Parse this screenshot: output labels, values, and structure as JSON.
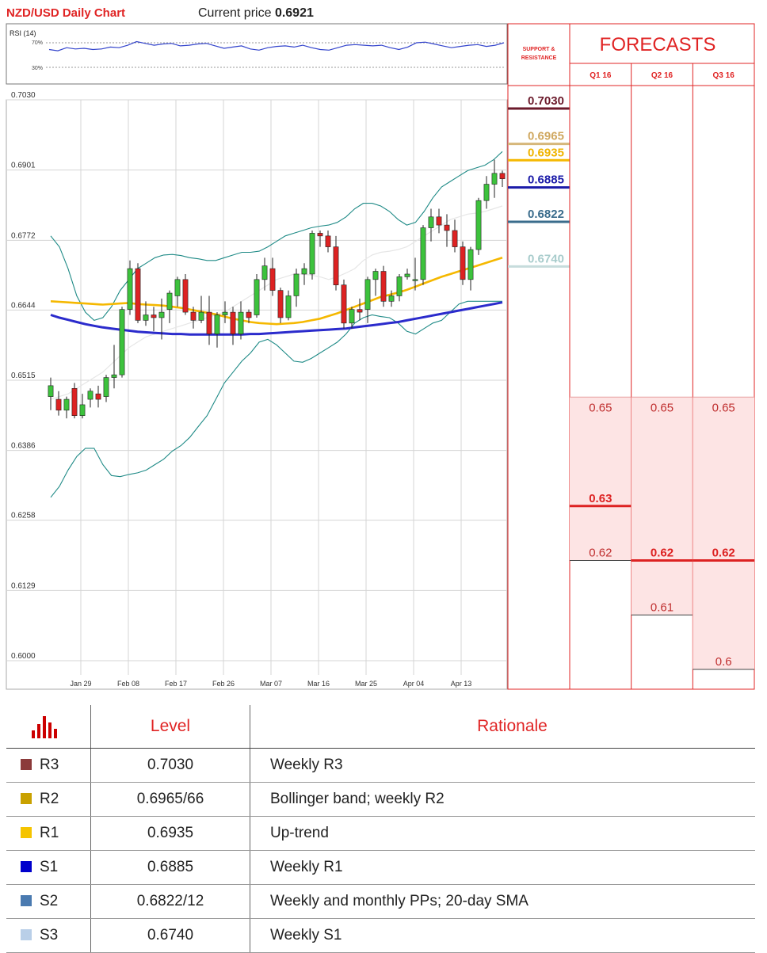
{
  "header": {
    "title": "NZD/USD Daily Chart",
    "price_label": "Current price",
    "price_value": "0.6921"
  },
  "rsi": {
    "label": "RSI (14)",
    "upper": "70%",
    "lower": "30%",
    "values": [
      59,
      57,
      62,
      60,
      61,
      59,
      60,
      63,
      62,
      66,
      72,
      69,
      66,
      68,
      69,
      65,
      66,
      68,
      69,
      65,
      61,
      63,
      65,
      60,
      58,
      62,
      64,
      65,
      63,
      66,
      62,
      59,
      58,
      62,
      66,
      67,
      66,
      65,
      66,
      62,
      59,
      63,
      70,
      71,
      68,
      65,
      62,
      64,
      66,
      67,
      64,
      66,
      70
    ]
  },
  "colors": {
    "bull": "#3cc23c",
    "bear": "#dd2222",
    "sma50": "#f5b800",
    "sma100": "#2b2bcc",
    "bollinger": "#1e8a86",
    "sma20": "#e6e6e6",
    "forecast_fill": "#fde4e4",
    "accent_red": "#e02424"
  },
  "chart_data": {
    "type": "candlestick",
    "title": "NZD/USD Daily Chart",
    "y_ticks": [
      "0.7030",
      "0.6901",
      "0.6772",
      "0.6644",
      "0.6515",
      "0.6386",
      "0.6258",
      "0.6129",
      "0.6000"
    ],
    "ylim": [
      0.6,
      0.703
    ],
    "x_ticks": [
      {
        "label": "Jan 29",
        "index": 2
      },
      {
        "label": "Feb 08",
        "index": 8
      },
      {
        "label": "Feb 17",
        "index": 14
      },
      {
        "label": "Feb 26",
        "index": 20
      },
      {
        "label": "Mar 07",
        "index": 26
      },
      {
        "label": "Mar 16",
        "index": 32
      },
      {
        "label": "Mar 25",
        "index": 38
      },
      {
        "label": "Apr 04",
        "index": 44
      },
      {
        "label": "Apr 13",
        "index": 50
      }
    ],
    "candles": [
      [
        0.6485,
        0.652,
        0.646,
        0.6505
      ],
      [
        0.648,
        0.6495,
        0.645,
        0.646
      ],
      [
        0.646,
        0.6485,
        0.6445,
        0.648
      ],
      [
        0.65,
        0.651,
        0.6445,
        0.645
      ],
      [
        0.645,
        0.649,
        0.6445,
        0.647
      ],
      [
        0.648,
        0.65,
        0.6465,
        0.6495
      ],
      [
        0.649,
        0.6505,
        0.6465,
        0.648
      ],
      [
        0.6485,
        0.6525,
        0.6475,
        0.652
      ],
      [
        0.652,
        0.658,
        0.65,
        0.6525
      ],
      [
        0.6525,
        0.665,
        0.652,
        0.6645
      ],
      [
        0.6645,
        0.6735,
        0.6635,
        0.672
      ],
      [
        0.672,
        0.673,
        0.662,
        0.6625
      ],
      [
        0.6625,
        0.666,
        0.6615,
        0.6635
      ],
      [
        0.6635,
        0.665,
        0.6605,
        0.663
      ],
      [
        0.663,
        0.6665,
        0.659,
        0.664
      ],
      [
        0.6645,
        0.668,
        0.662,
        0.6675
      ],
      [
        0.667,
        0.6705,
        0.665,
        0.67
      ],
      [
        0.67,
        0.671,
        0.6635,
        0.664
      ],
      [
        0.664,
        0.665,
        0.661,
        0.6625
      ],
      [
        0.6625,
        0.667,
        0.662,
        0.664
      ],
      [
        0.664,
        0.667,
        0.658,
        0.66
      ],
      [
        0.66,
        0.664,
        0.6575,
        0.6635
      ],
      [
        0.6635,
        0.666,
        0.662,
        0.664
      ],
      [
        0.664,
        0.665,
        0.658,
        0.66
      ],
      [
        0.66,
        0.666,
        0.659,
        0.664
      ],
      [
        0.664,
        0.6645,
        0.662,
        0.663
      ],
      [
        0.6635,
        0.671,
        0.663,
        0.67
      ],
      [
        0.67,
        0.674,
        0.668,
        0.6725
      ],
      [
        0.672,
        0.674,
        0.667,
        0.668
      ],
      [
        0.668,
        0.6685,
        0.662,
        0.663
      ],
      [
        0.663,
        0.668,
        0.6625,
        0.667
      ],
      [
        0.667,
        0.672,
        0.665,
        0.671
      ],
      [
        0.671,
        0.673,
        0.669,
        0.672
      ],
      [
        0.671,
        0.679,
        0.67,
        0.6785
      ],
      [
        0.6785,
        0.679,
        0.676,
        0.678
      ],
      [
        0.678,
        0.679,
        0.675,
        0.676
      ],
      [
        0.676,
        0.678,
        0.668,
        0.669
      ],
      [
        0.669,
        0.67,
        0.661,
        0.662
      ],
      [
        0.662,
        0.665,
        0.661,
        0.6645
      ],
      [
        0.6645,
        0.6665,
        0.6625,
        0.664
      ],
      [
        0.6645,
        0.6705,
        0.662,
        0.67
      ],
      [
        0.67,
        0.672,
        0.667,
        0.6715
      ],
      [
        0.6715,
        0.6725,
        0.665,
        0.666
      ],
      [
        0.666,
        0.668,
        0.665,
        0.667
      ],
      [
        0.667,
        0.671,
        0.666,
        0.6705
      ],
      [
        0.6705,
        0.672,
        0.67,
        0.671
      ],
      [
        0.67,
        0.674,
        0.668,
        0.67
      ],
      [
        0.67,
        0.68,
        0.669,
        0.6795
      ],
      [
        0.6795,
        0.683,
        0.677,
        0.6815
      ],
      [
        0.6815,
        0.683,
        0.6785,
        0.68
      ],
      [
        0.68,
        0.682,
        0.676,
        0.679
      ],
      [
        0.679,
        0.681,
        0.675,
        0.676
      ],
      [
        0.676,
        0.677,
        0.669,
        0.67
      ],
      [
        0.67,
        0.676,
        0.668,
        0.6755
      ],
      [
        0.6755,
        0.685,
        0.6745,
        0.6845
      ],
      [
        0.6845,
        0.689,
        0.683,
        0.6875
      ],
      [
        0.6875,
        0.692,
        0.685,
        0.6895
      ],
      [
        0.6895,
        0.69,
        0.687,
        0.6885
      ]
    ],
    "sma50": [
      0.666,
      0.6659,
      0.6658,
      0.6657,
      0.6656,
      0.6655,
      0.6654,
      0.6655,
      0.6656,
      0.6657,
      0.6655,
      0.6654,
      0.6653,
      0.6652,
      0.665,
      0.6648,
      0.6645,
      0.6642,
      0.6639,
      0.6636,
      0.6632,
      0.6628,
      0.6625,
      0.6622,
      0.662,
      0.6619,
      0.6618,
      0.6619,
      0.662,
      0.6622,
      0.6625,
      0.6628,
      0.6633,
      0.6638,
      0.6644,
      0.665,
      0.6656,
      0.6662,
      0.6668,
      0.6672,
      0.6676,
      0.6681,
      0.6687,
      0.6693,
      0.6699,
      0.6705,
      0.671,
      0.6715,
      0.672,
      0.6725,
      0.673,
      0.6735,
      0.674
    ],
    "sma100": [
      0.6635,
      0.663,
      0.6626,
      0.6622,
      0.6618,
      0.6615,
      0.6612,
      0.661,
      0.6608,
      0.6606,
      0.6604,
      0.6603,
      0.6602,
      0.6601,
      0.66,
      0.66,
      0.6599,
      0.6599,
      0.6599,
      0.6599,
      0.6599,
      0.6599,
      0.6599,
      0.66,
      0.66,
      0.6601,
      0.6602,
      0.6603,
      0.6604,
      0.6605,
      0.6606,
      0.6607,
      0.6608,
      0.6609,
      0.661,
      0.6612,
      0.6614,
      0.6616,
      0.6618,
      0.662,
      0.6622,
      0.6625,
      0.6628,
      0.6631,
      0.6634,
      0.6637,
      0.664,
      0.6643,
      0.6646,
      0.6649,
      0.6652,
      0.6655,
      0.6658
    ],
    "bb_upper": [
      0.678,
      0.676,
      0.672,
      0.667,
      0.664,
      0.6625,
      0.663,
      0.665,
      0.668,
      0.67,
      0.672,
      0.673,
      0.674,
      0.6745,
      0.6746,
      0.6744,
      0.674,
      0.6738,
      0.6735,
      0.6735,
      0.674,
      0.6745,
      0.675,
      0.675,
      0.6752,
      0.676,
      0.677,
      0.678,
      0.6785,
      0.679,
      0.6795,
      0.6798,
      0.68,
      0.6805,
      0.6815,
      0.683,
      0.684,
      0.684,
      0.6835,
      0.6825,
      0.681,
      0.68,
      0.6805,
      0.6825,
      0.685,
      0.687,
      0.688,
      0.689,
      0.69,
      0.6905,
      0.691,
      0.692,
      0.6935
    ],
    "bb_lower": [
      0.63,
      0.632,
      0.635,
      0.6375,
      0.639,
      0.639,
      0.636,
      0.634,
      0.6338,
      0.6342,
      0.6345,
      0.635,
      0.636,
      0.637,
      0.6385,
      0.6395,
      0.641,
      0.643,
      0.645,
      0.648,
      0.651,
      0.653,
      0.655,
      0.6565,
      0.6585,
      0.659,
      0.658,
      0.6565,
      0.655,
      0.6548,
      0.6555,
      0.6565,
      0.6575,
      0.6585,
      0.66,
      0.662,
      0.663,
      0.6635,
      0.6632,
      0.663,
      0.662,
      0.6605,
      0.66,
      0.661,
      0.662,
      0.6625,
      0.664,
      0.6655,
      0.666,
      0.666,
      0.666,
      0.666,
      0.666
    ],
    "sma20": [
      0.648,
      0.6485,
      0.649,
      0.65,
      0.651,
      0.652,
      0.653,
      0.6545,
      0.656,
      0.6575,
      0.6585,
      0.6595,
      0.66,
      0.6605,
      0.661,
      0.6615,
      0.662,
      0.6625,
      0.663,
      0.6635,
      0.664,
      0.665,
      0.666,
      0.667,
      0.668,
      0.669,
      0.67,
      0.6705,
      0.671,
      0.671,
      0.6708,
      0.6705,
      0.67,
      0.6705,
      0.6712,
      0.672,
      0.6735,
      0.6745,
      0.675,
      0.6752,
      0.6755,
      0.676,
      0.677,
      0.678,
      0.679,
      0.68,
      0.681,
      0.6815,
      0.682,
      0.6822,
      0.6825,
      0.683,
      0.6835
    ]
  },
  "support_resistance": {
    "header": "SUPPORT & RESISTANCE",
    "levels": [
      {
        "label": "0.7030",
        "value": 0.703,
        "color": "#6b1a2b",
        "text_color": "#6b1a2b"
      },
      {
        "label": "0.6965",
        "value": 0.6965,
        "color": "#d6b77a",
        "text_color": "#d0a860"
      },
      {
        "label": "0.6935",
        "value": 0.6935,
        "color": "#f5b800",
        "text_color": "#f0b400"
      },
      {
        "label": "0.6885",
        "value": 0.6885,
        "color": "#1a1aa8",
        "text_color": "#1a1aa8"
      },
      {
        "label": "0.6822",
        "value": 0.6822,
        "color": "#3a6c8c",
        "text_color": "#3a6c8c"
      },
      {
        "label": "0.6740",
        "value": 0.674,
        "color": "#c6dcdc",
        "text_color": "#a8cccc"
      }
    ]
  },
  "forecasts": {
    "title": "FORECASTS",
    "columns": [
      {
        "label": "Q1 16",
        "top": 0.65,
        "top_label": "0.65",
        "bottom": 0.62,
        "bottom_label": "0.62",
        "mean": 0.63,
        "mean_label": "0.63"
      },
      {
        "label": "Q2 16",
        "top": 0.65,
        "top_label": "0.65",
        "bottom": 0.61,
        "bottom_label": "0.61",
        "mean": 0.62,
        "mean_label": "0.62"
      },
      {
        "label": "Q3 16",
        "top": 0.65,
        "top_label": "0.65",
        "bottom": 0.6,
        "bottom_label": "0.6",
        "mean": 0.62,
        "mean_label": "0.62"
      }
    ]
  },
  "levels_table": {
    "headers": {
      "level": "Level",
      "rationale": "Rationale"
    },
    "rows": [
      {
        "name": "R3",
        "value": "0.7030",
        "rationale": "Weekly R3",
        "color": "#8b3a3a"
      },
      {
        "name": "R2",
        "value": "0.6965/66",
        "rationale": "Bollinger band; weekly R2",
        "color": "#c9a100"
      },
      {
        "name": "R1",
        "value": "0.6935",
        "rationale": "Up-trend",
        "color": "#f5c400"
      },
      {
        "name": "S1",
        "value": "0.6885",
        "rationale": "Weekly R1",
        "color": "#0000cc"
      },
      {
        "name": "S2",
        "value": "0.6822/12",
        "rationale": "Weekly and monthly PPs; 20-day SMA",
        "color": "#4a7ab0"
      },
      {
        "name": "S3",
        "value": "0.6740",
        "rationale": "Weekly S1",
        "color": "#b9cfe8"
      }
    ]
  }
}
